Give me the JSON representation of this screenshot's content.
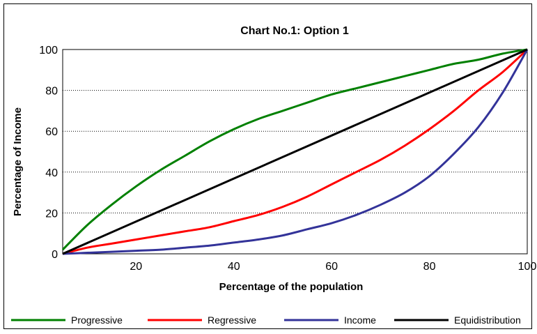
{
  "chart_data": {
    "type": "line",
    "title": "Chart No.1: Option 1",
    "xlabel": "Percentage of the population",
    "ylabel": "Percentage of Income",
    "xlim": [
      5,
      100
    ],
    "ylim": [
      0,
      100
    ],
    "x_ticks": [
      "20",
      "40",
      "60",
      "80",
      "100"
    ],
    "x_tick_values": [
      20,
      40,
      60,
      80,
      100
    ],
    "y_ticks": [
      "0",
      "20",
      "40",
      "60",
      "80",
      "100"
    ],
    "y_tick_values": [
      0,
      20,
      40,
      60,
      80,
      100
    ],
    "grid": "horizontal dotted",
    "legend_position": "bottom",
    "series": [
      {
        "name": "Progressive",
        "color": "#008000",
        "x": [
          5,
          10,
          15,
          20,
          25,
          30,
          35,
          40,
          45,
          50,
          55,
          60,
          65,
          70,
          75,
          80,
          85,
          90,
          95,
          100
        ],
        "y": [
          2,
          14,
          24,
          33,
          41,
          48,
          55,
          61,
          66,
          70,
          74,
          78,
          81,
          84,
          87,
          90,
          93,
          95,
          98,
          100
        ]
      },
      {
        "name": "Regressive",
        "color": "#ff0000",
        "x": [
          5,
          10,
          15,
          20,
          25,
          30,
          35,
          40,
          45,
          50,
          55,
          60,
          65,
          70,
          75,
          80,
          85,
          90,
          95,
          100
        ],
        "y": [
          0,
          3,
          5,
          7,
          9,
          11,
          13,
          16,
          19,
          23,
          28,
          34,
          40,
          46,
          53,
          61,
          70,
          80,
          89,
          100
        ]
      },
      {
        "name": "Income",
        "color": "#333399",
        "x": [
          5,
          10,
          15,
          20,
          25,
          30,
          35,
          40,
          45,
          50,
          55,
          60,
          65,
          70,
          75,
          80,
          85,
          90,
          95,
          100
        ],
        "y": [
          0,
          0.5,
          1,
          1.5,
          2,
          3,
          4,
          5.5,
          7,
          9,
          12,
          15,
          19,
          24,
          30,
          38,
          49,
          62,
          79,
          100
        ]
      },
      {
        "name": "Equidistribution",
        "color": "#000000",
        "x": [
          5,
          100
        ],
        "y": [
          0,
          100
        ]
      }
    ]
  }
}
